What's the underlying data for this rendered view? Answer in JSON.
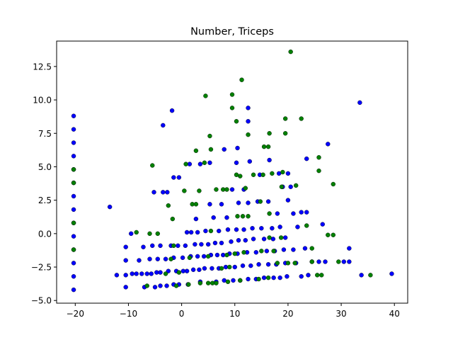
{
  "chart_data": {
    "type": "scatter",
    "title": "Number, Triceps",
    "xlabel": "",
    "ylabel": "",
    "xlim": [
      -23.5,
      42.5
    ],
    "ylim": [
      -5.2,
      14.4
    ],
    "xticks": [
      -20,
      -10,
      0,
      10,
      20,
      30,
      40
    ],
    "yticks": [
      -5.0,
      -2.5,
      0.0,
      2.5,
      5.0,
      7.5,
      10.0,
      12.5
    ],
    "xtick_labels": [
      "−20",
      "−10",
      "0",
      "10",
      "20",
      "30",
      "40"
    ],
    "ytick_labels": [
      "−5.0",
      "−2.5",
      "0.0",
      "2.5",
      "5.0",
      "7.5",
      "10.0",
      "12.5"
    ],
    "grid": false,
    "legend": "none",
    "series": [
      {
        "color": "#0000ff",
        "points": [
          [
            -20.3,
            8.8
          ],
          [
            -20.3,
            7.8
          ],
          [
            -20.3,
            6.8
          ],
          [
            -20.3,
            5.8
          ],
          [
            -20.3,
            4.8
          ],
          [
            -20.3,
            3.8
          ],
          [
            -20.3,
            2.8
          ],
          [
            -20.3,
            1.8
          ],
          [
            -20.3,
            0.8
          ],
          [
            -20.3,
            -0.2
          ],
          [
            -20.3,
            -1.2
          ],
          [
            -20.3,
            -2.2
          ],
          [
            -20.3,
            -3.2
          ],
          [
            -20.3,
            -4.2
          ],
          [
            -13.5,
            2.0
          ],
          [
            -12.2,
            -3.1
          ],
          [
            -10.5,
            -4.0
          ],
          [
            -10.5,
            -3.1
          ],
          [
            -10.5,
            -2.0
          ],
          [
            -10.5,
            -1.0
          ],
          [
            -9.5,
            0.0
          ],
          [
            -9.3,
            -3.0
          ],
          [
            -8.5,
            -3.0
          ],
          [
            -8.0,
            -2.0
          ],
          [
            -7.5,
            -3.0
          ],
          [
            -7.2,
            -1.0
          ],
          [
            -7.0,
            -4.0
          ],
          [
            -6.5,
            -3.0
          ],
          [
            -6.0,
            -1.9
          ],
          [
            -5.7,
            -3.0
          ],
          [
            -5.5,
            -0.9
          ],
          [
            -5.2,
            3.1
          ],
          [
            -5.0,
            -4.0
          ],
          [
            -4.7,
            -2.9
          ],
          [
            -4.5,
            -1.9
          ],
          [
            -4.0,
            -3.9
          ],
          [
            -4.0,
            -2.9
          ],
          [
            -4.0,
            -0.9
          ],
          [
            -3.5,
            3.1
          ],
          [
            -3.5,
            8.1
          ],
          [
            -3.0,
            -1.9
          ],
          [
            -2.8,
            -3.9
          ],
          [
            -2.7,
            3.1
          ],
          [
            -2.5,
            -2.8
          ],
          [
            -2.0,
            -0.9
          ],
          [
            -1.8,
            9.2
          ],
          [
            -1.5,
            -3.8
          ],
          [
            -1.5,
            -1.8
          ],
          [
            -1.5,
            4.2
          ],
          [
            -1.0,
            -2.8
          ],
          [
            -0.7,
            -0.9
          ],
          [
            -0.5,
            4.2
          ],
          [
            -0.5,
            -3.8
          ],
          [
            0.2,
            -1.8
          ],
          [
            0.3,
            -2.8
          ],
          [
            0.7,
            -0.9
          ],
          [
            1.0,
            0.1
          ],
          [
            1.0,
            -2.8
          ],
          [
            1.2,
            -3.8
          ],
          [
            1.5,
            5.2
          ],
          [
            1.7,
            -1.7
          ],
          [
            1.8,
            0.1
          ],
          [
            2.2,
            -2.7
          ],
          [
            2.5,
            -0.8
          ],
          [
            2.7,
            1.1
          ],
          [
            3.0,
            -1.7
          ],
          [
            3.0,
            0.1
          ],
          [
            3.3,
            -2.7
          ],
          [
            3.5,
            5.2
          ],
          [
            3.5,
            -3.6
          ],
          [
            3.7,
            -0.8
          ],
          [
            4.2,
            -1.7
          ],
          [
            4.3,
            -2.6
          ],
          [
            4.5,
            0.2
          ],
          [
            5.0,
            -0.8
          ],
          [
            5.3,
            2.2
          ],
          [
            5.3,
            5.3
          ],
          [
            5.5,
            -1.6
          ],
          [
            5.7,
            -2.6
          ],
          [
            6.0,
            1.2
          ],
          [
            6.3,
            -0.7
          ],
          [
            6.5,
            -3.6
          ],
          [
            6.7,
            -1.6
          ],
          [
            7.0,
            -2.6
          ],
          [
            7.0,
            0.2
          ],
          [
            7.5,
            2.2
          ],
          [
            7.5,
            -0.7
          ],
          [
            7.8,
            -1.6
          ],
          [
            8.0,
            6.3
          ],
          [
            8.0,
            -3.5
          ],
          [
            8.3,
            -2.5
          ],
          [
            8.5,
            1.2
          ],
          [
            8.7,
            0.3
          ],
          [
            9.0,
            -1.5
          ],
          [
            9.3,
            -0.6
          ],
          [
            9.5,
            3.3
          ],
          [
            9.7,
            -3.5
          ],
          [
            10.0,
            -2.5
          ],
          [
            10.3,
            5.3
          ],
          [
            10.3,
            0.3
          ],
          [
            10.5,
            6.4
          ],
          [
            10.5,
            -1.5
          ],
          [
            10.7,
            2.3
          ],
          [
            10.7,
            -0.5
          ],
          [
            11.0,
            -3.5
          ],
          [
            11.5,
            -2.4
          ],
          [
            11.7,
            3.3
          ],
          [
            11.7,
            0.3
          ],
          [
            12.0,
            -0.5
          ],
          [
            12.3,
            -1.4
          ],
          [
            12.5,
            2.3
          ],
          [
            12.5,
            9.4
          ],
          [
            12.5,
            8.4
          ],
          [
            12.5,
            -3.4
          ],
          [
            12.8,
            5.4
          ],
          [
            13.0,
            -2.4
          ],
          [
            13.3,
            0.4
          ],
          [
            13.5,
            -0.4
          ],
          [
            14.0,
            -1.4
          ],
          [
            14.0,
            -3.4
          ],
          [
            14.3,
            2.4
          ],
          [
            14.5,
            -2.3
          ],
          [
            14.7,
            4.4
          ],
          [
            15.0,
            0.4
          ],
          [
            15.5,
            -0.4
          ],
          [
            15.5,
            -3.3
          ],
          [
            16.0,
            -1.3
          ],
          [
            16.3,
            2.4
          ],
          [
            16.3,
            -2.3
          ],
          [
            16.5,
            5.5
          ],
          [
            17.0,
            0.4
          ],
          [
            17.2,
            -0.4
          ],
          [
            17.3,
            -3.3
          ],
          [
            17.5,
            -1.3
          ],
          [
            17.8,
            -2.3
          ],
          [
            18.0,
            1.5
          ],
          [
            18.3,
            4.5
          ],
          [
            18.5,
            0.5
          ],
          [
            18.5,
            -3.3
          ],
          [
            19.0,
            3.5
          ],
          [
            19.2,
            -1.2
          ],
          [
            19.5,
            -0.3
          ],
          [
            19.5,
            -2.2
          ],
          [
            19.8,
            -3.2
          ],
          [
            20.0,
            2.5
          ],
          [
            20.0,
            4.5
          ],
          [
            20.5,
            3.5
          ],
          [
            21.0,
            1.5
          ],
          [
            21.0,
            -1.2
          ],
          [
            21.5,
            -2.2
          ],
          [
            21.8,
            0.5
          ],
          [
            22.5,
            -3.2
          ],
          [
            22.5,
            1.6
          ],
          [
            23.2,
            -1.1
          ],
          [
            23.5,
            1.6
          ],
          [
            23.5,
            5.6
          ],
          [
            23.8,
            -3.1
          ],
          [
            24.5,
            -2.1
          ],
          [
            25.8,
            -2.1
          ],
          [
            26.5,
            0.7
          ],
          [
            27.0,
            -2.1
          ],
          [
            27.5,
            6.7
          ],
          [
            30.5,
            -2.1
          ],
          [
            31.5,
            -1.1
          ],
          [
            31.5,
            -2.1
          ],
          [
            33.5,
            9.8
          ],
          [
            33.8,
            -3.1
          ],
          [
            39.5,
            -3.0
          ]
        ]
      },
      {
        "color": "#008000",
        "points": [
          [
            -20.3,
            4.8
          ],
          [
            -20.3,
            3.8
          ],
          [
            -20.3,
            0.8
          ],
          [
            -20.3,
            -1.2
          ],
          [
            -8.5,
            0.1
          ],
          [
            -6.5,
            -3.9
          ],
          [
            -6.0,
            0.0
          ],
          [
            -5.5,
            5.1
          ],
          [
            -4.5,
            0.0
          ],
          [
            -3.0,
            -3.0
          ],
          [
            -2.5,
            2.1
          ],
          [
            -2.0,
            -1.9
          ],
          [
            -1.7,
            1.1
          ],
          [
            -1.5,
            -0.9
          ],
          [
            -1.0,
            -3.9
          ],
          [
            -0.5,
            -2.9
          ],
          [
            0.5,
            3.2
          ],
          [
            0.8,
            5.2
          ],
          [
            1.3,
            -3.8
          ],
          [
            1.5,
            -1.8
          ],
          [
            2.0,
            2.2
          ],
          [
            2.7,
            6.2
          ],
          [
            2.7,
            2.2
          ],
          [
            3.3,
            3.2
          ],
          [
            3.5,
            -3.7
          ],
          [
            4.3,
            5.3
          ],
          [
            4.5,
            10.3
          ],
          [
            5.0,
            -3.7
          ],
          [
            5.0,
            -1.7
          ],
          [
            5.3,
            7.3
          ],
          [
            5.5,
            0.2
          ],
          [
            5.5,
            6.3
          ],
          [
            5.8,
            -3.7
          ],
          [
            6.5,
            3.3
          ],
          [
            6.5,
            -3.7
          ],
          [
            7.5,
            -2.6
          ],
          [
            7.8,
            3.3
          ],
          [
            8.5,
            3.3
          ],
          [
            8.5,
            -1.6
          ],
          [
            8.7,
            -3.6
          ],
          [
            9.0,
            -2.5
          ],
          [
            9.5,
            10.4
          ],
          [
            9.5,
            9.4
          ],
          [
            10.0,
            -1.5
          ],
          [
            10.3,
            4.4
          ],
          [
            10.3,
            8.4
          ],
          [
            10.5,
            1.3
          ],
          [
            11.0,
            4.3
          ],
          [
            11.0,
            -3.5
          ],
          [
            11.3,
            11.5
          ],
          [
            11.5,
            1.3
          ],
          [
            11.7,
            -1.4
          ],
          [
            12.0,
            3.4
          ],
          [
            12.5,
            7.4
          ],
          [
            12.5,
            1.3
          ],
          [
            13.5,
            4.4
          ],
          [
            14.5,
            -3.4
          ],
          [
            14.8,
            2.4
          ],
          [
            15.0,
            -1.3
          ],
          [
            15.3,
            4.4
          ],
          [
            15.5,
            6.5
          ],
          [
            16.3,
            6.5
          ],
          [
            16.3,
            -3.3
          ],
          [
            16.5,
            7.5
          ],
          [
            16.5,
            1.5
          ],
          [
            16.5,
            -0.3
          ],
          [
            17.0,
            4.5
          ],
          [
            17.3,
            -1.3
          ],
          [
            18.0,
            -2.2
          ],
          [
            18.7,
            -0.3
          ],
          [
            18.8,
            3.5
          ],
          [
            19.0,
            4.6
          ],
          [
            19.5,
            8.6
          ],
          [
            19.5,
            7.5
          ],
          [
            20.0,
            -2.2
          ],
          [
            20.5,
            13.6
          ],
          [
            21.3,
            -2.2
          ],
          [
            21.5,
            3.6
          ],
          [
            22.5,
            8.6
          ],
          [
            23.5,
            0.6
          ],
          [
            24.5,
            -1.1
          ],
          [
            24.5,
            -2.1
          ],
          [
            25.5,
            -3.1
          ],
          [
            25.8,
            5.7
          ],
          [
            25.8,
            4.7
          ],
          [
            26.3,
            -3.1
          ],
          [
            27.5,
            -0.1
          ],
          [
            28.5,
            -0.1
          ],
          [
            28.5,
            3.7
          ],
          [
            29.5,
            -2.1
          ],
          [
            35.5,
            -3.1
          ]
        ]
      }
    ]
  }
}
